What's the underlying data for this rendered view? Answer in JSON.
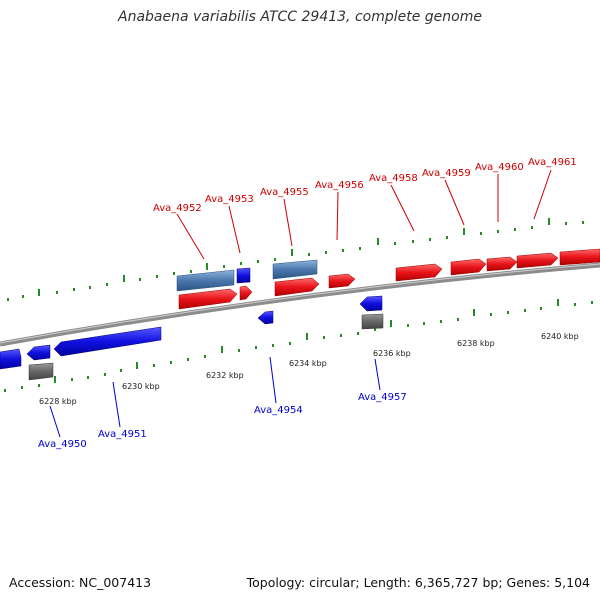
{
  "title": "Anabaena variabilis ATCC 29413, complete genome",
  "footer": {
    "accession": "Accession: NC_007413",
    "summary": "Topology: circular; Length: 6,365,727 bp; Genes: 5,104"
  },
  "colors": {
    "forward_gene": "#e8141a",
    "reverse_gene": "#1010e0",
    "forward_feature": "#4a78ad",
    "pseudo_gene": "#666666",
    "backbone": "#8c8c8c",
    "tick": "#2a8a2a",
    "forward_label": "#cc0000",
    "reverse_label": "#0000cc"
  },
  "ticks": [
    "6228 kbp",
    "6230 kbp",
    "6232 kbp",
    "6234 kbp",
    "6236 kbp",
    "6238 kbp",
    "6240 kbp"
  ],
  "forward_labels": [
    "Ava_4952",
    "Ava_4953",
    "Ava_4955",
    "Ava_4956",
    "Ava_4958",
    "Ava_4959",
    "Ava_4960",
    "Ava_4961"
  ],
  "reverse_labels": [
    "Ava_4950",
    "Ava_4951",
    "Ava_4954",
    "Ava_4957"
  ]
}
